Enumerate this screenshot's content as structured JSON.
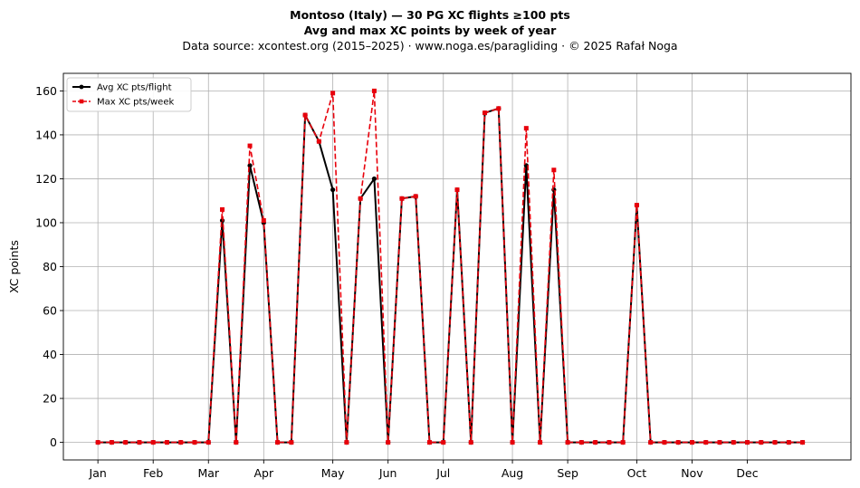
{
  "chart_data": {
    "type": "line",
    "title_line1": "Montoso (Italy)  —  30 PG XC flights ≥100 pts",
    "title_line2": "Avg and max XC points by week of year",
    "subtitle": "Data source: xcontest.org (2015–2025)  ·  www.noga.es/paragliding  ·  © 2025 Rafał Noga",
    "xlabel": "",
    "ylabel": "XC points",
    "xlim": [
      -2.5,
      54.5
    ],
    "ylim": [
      -8,
      168
    ],
    "yticks": [
      0,
      20,
      40,
      60,
      80,
      100,
      120,
      140,
      160
    ],
    "month_ticks": [
      {
        "label": "Jan",
        "x": 0
      },
      {
        "label": "Feb",
        "x": 4
      },
      {
        "label": "Mar",
        "x": 8
      },
      {
        "label": "Apr",
        "x": 12
      },
      {
        "label": "May",
        "x": 17
      },
      {
        "label": "Jun",
        "x": 21
      },
      {
        "label": "Jul",
        "x": 25
      },
      {
        "label": "Aug",
        "x": 30
      },
      {
        "label": "Sep",
        "x": 34
      },
      {
        "label": "Oct",
        "x": 39
      },
      {
        "label": "Nov",
        "x": 43
      },
      {
        "label": "Dec",
        "x": 47
      }
    ],
    "grid": true,
    "legend_position": "top-left",
    "x": [
      0,
      1,
      2,
      3,
      4,
      5,
      6,
      7,
      8,
      9,
      10,
      11,
      12,
      13,
      14,
      15,
      16,
      17,
      18,
      19,
      20,
      21,
      22,
      23,
      24,
      25,
      26,
      27,
      28,
      29,
      30,
      31,
      32,
      33,
      34,
      35,
      36,
      37,
      38,
      39,
      40,
      41,
      42,
      43,
      44,
      45,
      46,
      47,
      48,
      49,
      50,
      51
    ],
    "series": [
      {
        "name": "Avg XC pts/flight",
        "color": "#000000",
        "style": "solid-circle",
        "values": [
          0,
          0,
          0,
          0,
          0,
          0,
          0,
          0,
          0,
          101,
          0,
          126,
          100,
          0,
          0,
          149,
          137,
          115,
          0,
          111,
          120,
          0,
          111,
          112,
          0,
          0,
          115,
          0,
          150,
          152,
          0,
          126,
          0,
          115,
          0,
          0,
          0,
          0,
          0,
          108,
          0,
          0,
          0,
          0,
          0,
          0,
          0,
          0,
          0,
          0,
          0,
          0
        ]
      },
      {
        "name": "Max XC pts/week",
        "color": "#e8000b",
        "style": "dashed-square",
        "values": [
          0,
          0,
          0,
          0,
          0,
          0,
          0,
          0,
          0,
          106,
          0,
          135,
          101,
          0,
          0,
          149,
          137,
          159,
          0,
          111,
          160,
          0,
          111,
          112,
          0,
          0,
          115,
          0,
          150,
          152,
          0,
          143,
          0,
          124,
          0,
          0,
          0,
          0,
          0,
          108,
          0,
          0,
          0,
          0,
          0,
          0,
          0,
          0,
          0,
          0,
          0,
          0
        ]
      }
    ]
  }
}
